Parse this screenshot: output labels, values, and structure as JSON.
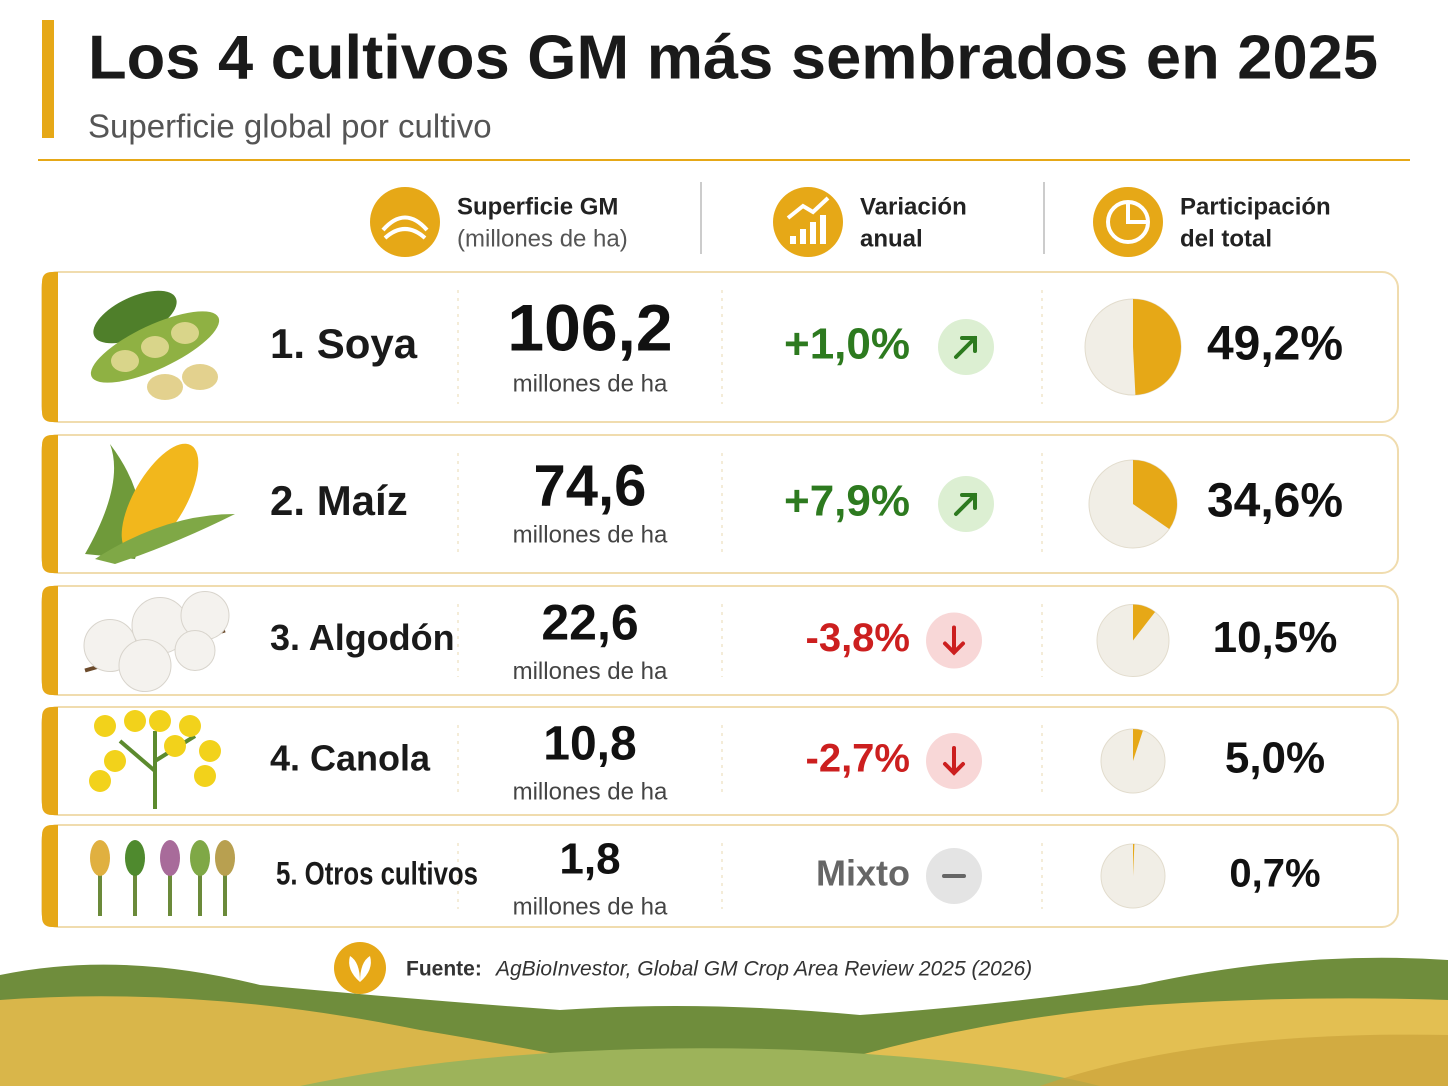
{
  "header": {
    "title": "Los 4 cultivos GM más sembrados en 2025",
    "subtitle": "Superficie global por cultivo"
  },
  "columns": [
    {
      "title": "Superficie GM",
      "subtitle": "(millones de ha)"
    },
    {
      "title": "Variación",
      "subtitle": "anual"
    },
    {
      "title": "Participación",
      "subtitle": "del total"
    }
  ],
  "rows": [
    {
      "name": "1. Soya",
      "area": "106,2",
      "unit": "millones de ha",
      "change": "+1,0%",
      "trend": "up",
      "share": 49.2,
      "share_label": "49,2%"
    },
    {
      "name": "2. Maíz",
      "area": "74,6",
      "unit": "millones de ha",
      "change": "+7,9%",
      "trend": "up",
      "share": 34.6,
      "share_label": "34,6%"
    },
    {
      "name": "3. Algodón",
      "area": "22,6",
      "unit": "millones de ha",
      "change": "-3,8%",
      "trend": "down",
      "share": 10.5,
      "share_label": "10,5%"
    },
    {
      "name": "4. Canola",
      "area": "10,8",
      "unit": "millones de ha",
      "change": "-2,7%",
      "trend": "down",
      "share": 5.0,
      "share_label": "5,0%"
    },
    {
      "name": "5. Otros cultivos",
      "area": "1,8",
      "unit": "millones de ha",
      "change": "Mixto",
      "trend": "flat",
      "share": 0.7,
      "share_label": "0,7%"
    }
  ],
  "footer": {
    "source_label": "Fuente:",
    "source": "AgBioInvestor, Global GM Crop Area Review 2025 (2026)"
  }
}
